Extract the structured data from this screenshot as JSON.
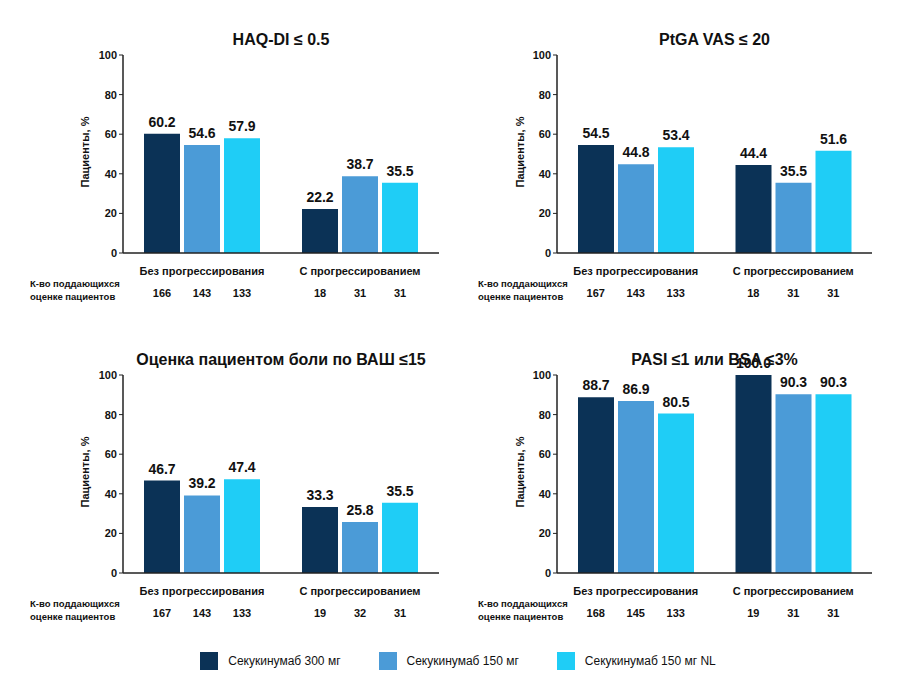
{
  "chart_data": [
    {
      "type": "bar",
      "title": "HAQ-DI ≤ 0.5",
      "ylabel": "Пациенты, %",
      "categories": [
        "Без прогрессирования",
        "С прогрессированием"
      ],
      "n_label": "К-во поддающихся оценке пациентов",
      "series": [
        {
          "name": "Секукинумаб 300 мг",
          "color": "#0b3256",
          "values": [
            60.2,
            22.2
          ],
          "n": [
            166,
            18
          ]
        },
        {
          "name": "Секукинумаб 150 мг",
          "color": "#4b9bd7",
          "values": [
            54.6,
            38.7
          ],
          "n": [
            143,
            31
          ]
        },
        {
          "name": "Секукинумаб 150 мг NL",
          "color": "#1fcdf6",
          "values": [
            57.9,
            35.5
          ],
          "n": [
            133,
            31
          ]
        }
      ],
      "ylim": [
        0,
        100
      ],
      "yticks": [
        0,
        20,
        40,
        60,
        80,
        100
      ],
      "grid": false,
      "data_labels": true,
      "legend": "bottom"
    },
    {
      "type": "bar",
      "title": "PtGA VAS ≤ 20",
      "ylabel": "Пациенты, %",
      "categories": [
        "Без прогрессирования",
        "С прогрессированием"
      ],
      "n_label": "К-во поддающихся оценке пациентов",
      "series": [
        {
          "name": "Секукинумаб 300 мг",
          "color": "#0b3256",
          "values": [
            54.5,
            44.4
          ],
          "n": [
            167,
            18
          ]
        },
        {
          "name": "Секукинумаб 150 мг",
          "color": "#4b9bd7",
          "values": [
            44.8,
            35.5
          ],
          "n": [
            143,
            31
          ]
        },
        {
          "name": "Секукинумаб 150 мг NL",
          "color": "#1fcdf6",
          "values": [
            53.4,
            51.6
          ],
          "n": [
            133,
            31
          ]
        }
      ],
      "ylim": [
        0,
        100
      ],
      "yticks": [
        0,
        20,
        40,
        60,
        80,
        100
      ],
      "grid": false,
      "data_labels": true,
      "legend": "bottom"
    },
    {
      "type": "bar",
      "title": "Оценка пациентом боли по ВАШ ≤15",
      "ylabel": "Пациенты, %",
      "categories": [
        "Без прогрессирования",
        "С прогрессированием"
      ],
      "n_label": "К-во поддающихся оценке пациентов",
      "series": [
        {
          "name": "Секукинумаб 300 мг",
          "color": "#0b3256",
          "values": [
            46.7,
            33.3
          ],
          "n": [
            167,
            19
          ]
        },
        {
          "name": "Секукинумаб 150 мг",
          "color": "#4b9bd7",
          "values": [
            39.2,
            25.8
          ],
          "n": [
            143,
            32
          ]
        },
        {
          "name": "Секукинумаб 150 мг NL",
          "color": "#1fcdf6",
          "values": [
            47.4,
            35.5
          ],
          "n": [
            133,
            31
          ]
        }
      ],
      "ylim": [
        0,
        100
      ],
      "yticks": [
        0,
        20,
        40,
        60,
        80,
        100
      ],
      "grid": false,
      "data_labels": true,
      "legend": "bottom"
    },
    {
      "type": "bar",
      "title": "PASI ≤1 или BSA ≤3%",
      "ylabel": "Пациенты, %",
      "categories": [
        "Без прогрессирования",
        "С прогрессированием"
      ],
      "n_label": "К-во поддающихся оценке пациентов",
      "series": [
        {
          "name": "Секукинумаб 300 мг",
          "color": "#0b3256",
          "values": [
            88.7,
            100.0
          ],
          "value_labels": [
            "88.7",
            "100.0"
          ],
          "n": [
            168,
            19
          ]
        },
        {
          "name": "Секукинумаб 150 мг",
          "color": "#4b9bd7",
          "values": [
            86.9,
            90.3
          ],
          "n": [
            145,
            31
          ]
        },
        {
          "name": "Секукинумаб 150 мг NL",
          "color": "#1fcdf6",
          "values": [
            80.5,
            90.3
          ],
          "n": [
            133,
            31
          ]
        }
      ],
      "ylim": [
        0,
        100
      ],
      "yticks": [
        0,
        20,
        40,
        60,
        80,
        100
      ],
      "grid": false,
      "data_labels": true,
      "legend": "bottom"
    }
  ]
}
